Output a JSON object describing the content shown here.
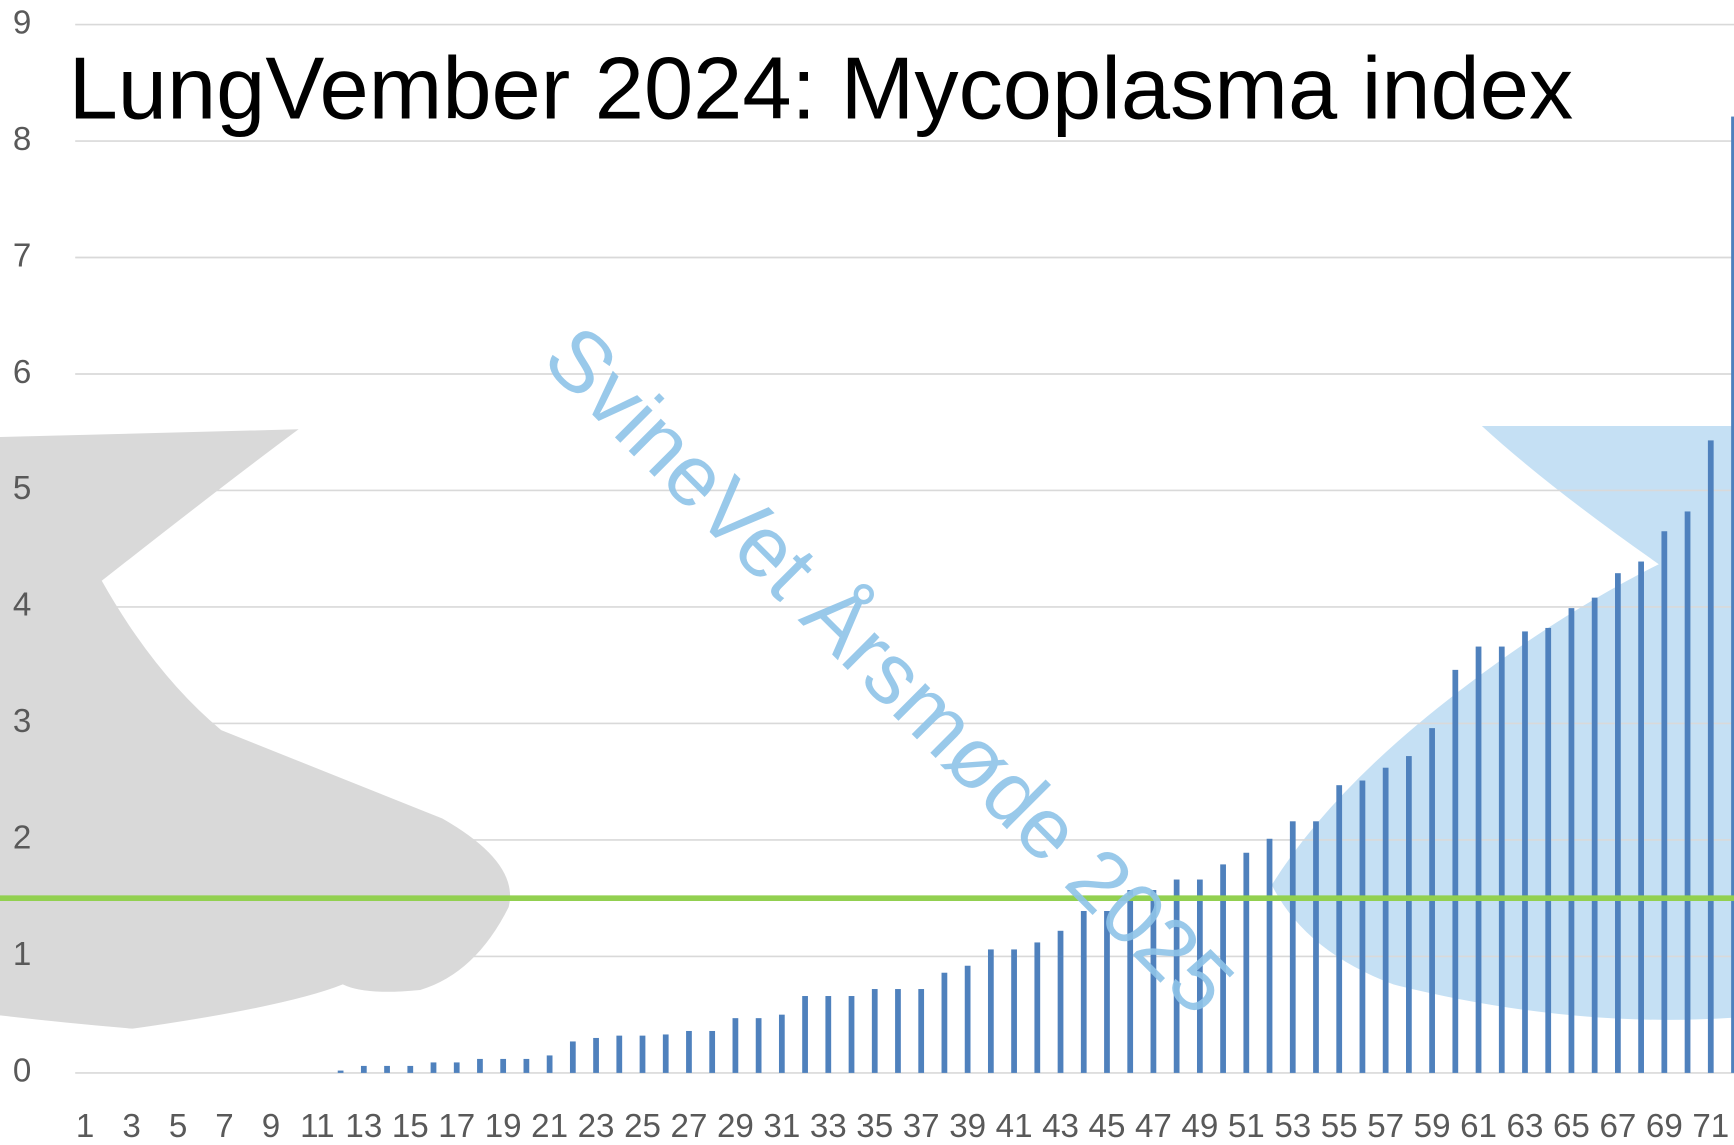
{
  "chart_data": {
    "type": "bar",
    "title": "LungVember 2024: Mycoplasma index",
    "annotation": "SvineVet Årsmøde 2025",
    "categories": [
      "1",
      null,
      "3",
      null,
      "5",
      null,
      "7",
      null,
      "9",
      null,
      "11",
      null,
      "13",
      null,
      "15",
      null,
      "17",
      null,
      "19",
      null,
      "21",
      null,
      "23",
      null,
      "25",
      null,
      "27",
      null,
      "29",
      null,
      "31",
      null,
      "33",
      null,
      "35",
      null,
      "37",
      null,
      "39",
      null,
      "41",
      null,
      "43",
      null,
      "45",
      null,
      "47",
      null,
      "49",
      null,
      "51",
      null,
      "53",
      null,
      "55",
      null,
      "57",
      null,
      "59",
      null,
      "61",
      null,
      "63",
      null,
      "65",
      null,
      "67",
      null,
      "69",
      null,
      "71",
      null
    ],
    "values": [
      0,
      0,
      0,
      0,
      0,
      0,
      0,
      0,
      0,
      0,
      0,
      0.02,
      0.06,
      0.06,
      0.06,
      0.09,
      0.09,
      0.12,
      0.12,
      0.12,
      0.15,
      0.27,
      0.3,
      0.32,
      0.32,
      0.33,
      0.36,
      0.36,
      0.47,
      0.47,
      0.5,
      0.66,
      0.66,
      0.66,
      0.72,
      0.72,
      0.72,
      0.86,
      0.92,
      1.06,
      1.06,
      1.12,
      1.22,
      1.39,
      1.39,
      1.57,
      1.57,
      1.66,
      1.66,
      1.79,
      1.89,
      2.01,
      2.16,
      2.16,
      2.47,
      2.51,
      2.62,
      2.72,
      2.96,
      3.46,
      3.66,
      3.66,
      3.79,
      3.82,
      3.99,
      4.08,
      4.29,
      4.39,
      4.65,
      4.82,
      5.43,
      8.21
    ],
    "color": "#4f81bd",
    "threshold": 1.5,
    "threshold_color": "#92d050",
    "ylim": [
      0,
      9
    ],
    "yticks": [
      0,
      1,
      2,
      3,
      4,
      5,
      6,
      7,
      8,
      9
    ],
    "grid": true
  }
}
